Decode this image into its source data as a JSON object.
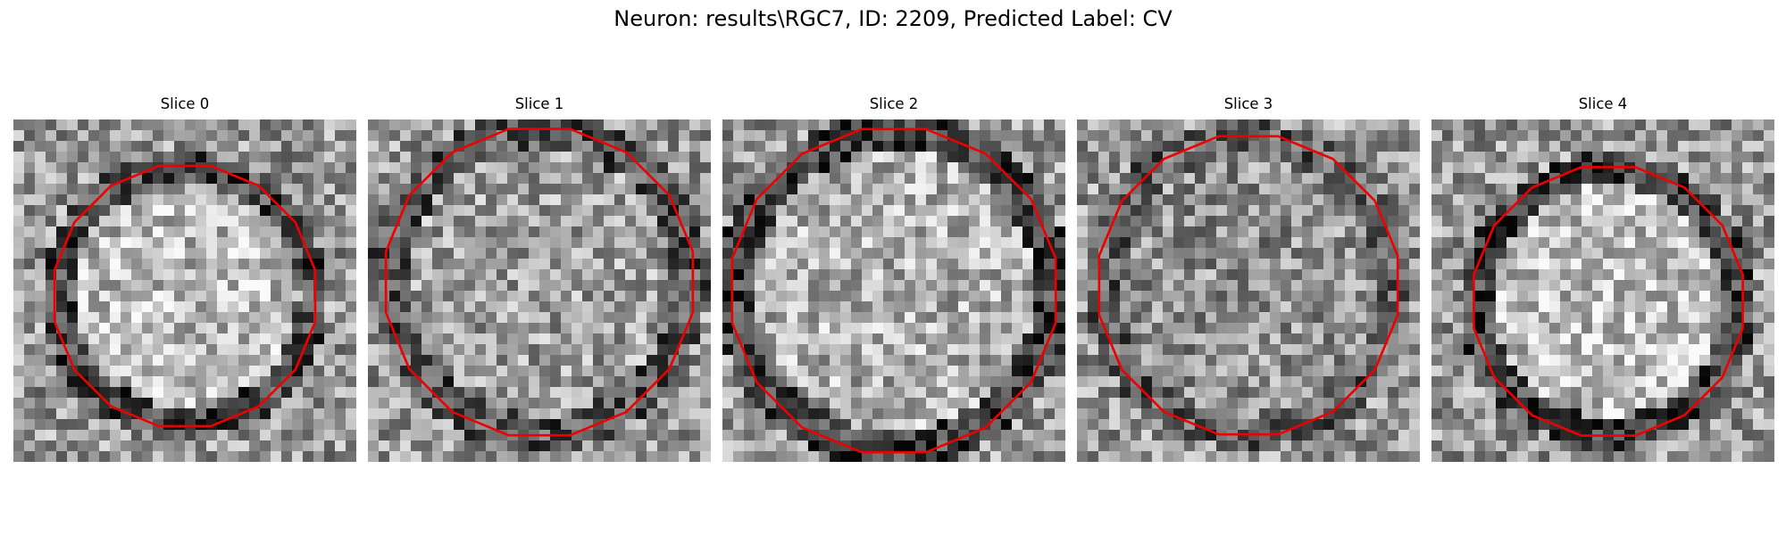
{
  "figure": {
    "title": "Neuron: results\\RGC7, ID: 2209, Predicted Label: CV",
    "contour_color": "#ee0000"
  },
  "slices": [
    {
      "title": "Slice 0"
    },
    {
      "title": "Slice 1"
    },
    {
      "title": "Slice 2"
    },
    {
      "title": "Slice 3"
    },
    {
      "title": "Slice 4"
    }
  ]
}
